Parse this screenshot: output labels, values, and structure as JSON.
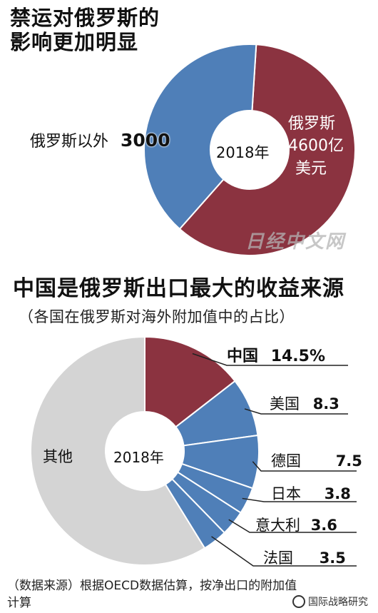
{
  "chart_data": [
    {
      "type": "pie",
      "donut": true,
      "title_lines": [
        "禁运对俄罗斯的",
        "影响更加明显"
      ],
      "center_label": "2018年",
      "slices": [
        {
          "label": "俄罗斯",
          "value": 4600,
          "value_text": "4600亿",
          "unit": "美元",
          "color": "#8b3340"
        },
        {
          "label": "俄罗斯以外",
          "value": 3000,
          "value_text": "3000",
          "color": "#4f7fb8"
        }
      ]
    },
    {
      "type": "pie",
      "donut": true,
      "title": "中国是俄罗斯出口最大的收益来源",
      "subtitle": "（各国在俄罗斯对海外附加值中的占比）",
      "center_label": "2018年",
      "unit": "%",
      "slices": [
        {
          "label": "中国",
          "value": 14.5,
          "value_text": "14.5%",
          "color": "#8b3340"
        },
        {
          "label": "美国",
          "value": 8.3,
          "value_text": "8.3",
          "color": "#4f7fb8"
        },
        {
          "label": "德国",
          "value": 7.5,
          "value_text": "7.5",
          "color": "#4f7fb8"
        },
        {
          "label": "日本",
          "value": 3.8,
          "value_text": "3.8",
          "color": "#4f7fb8"
        },
        {
          "label": "意大利",
          "value": 3.6,
          "value_text": "3.6",
          "color": "#4f7fb8"
        },
        {
          "label": "法国",
          "value": 3.5,
          "value_text": "3.5",
          "color": "#4f7fb8"
        },
        {
          "label": "其他",
          "value": 58.8,
          "value_text": "",
          "color": "#d4d4d4"
        }
      ]
    }
  ],
  "watermark": "日经中文网",
  "footer_lines": [
    "（数据来源）根据OECD数据估算，按净出口的附加值",
    "计算"
  ],
  "brand": "国际战略研究"
}
